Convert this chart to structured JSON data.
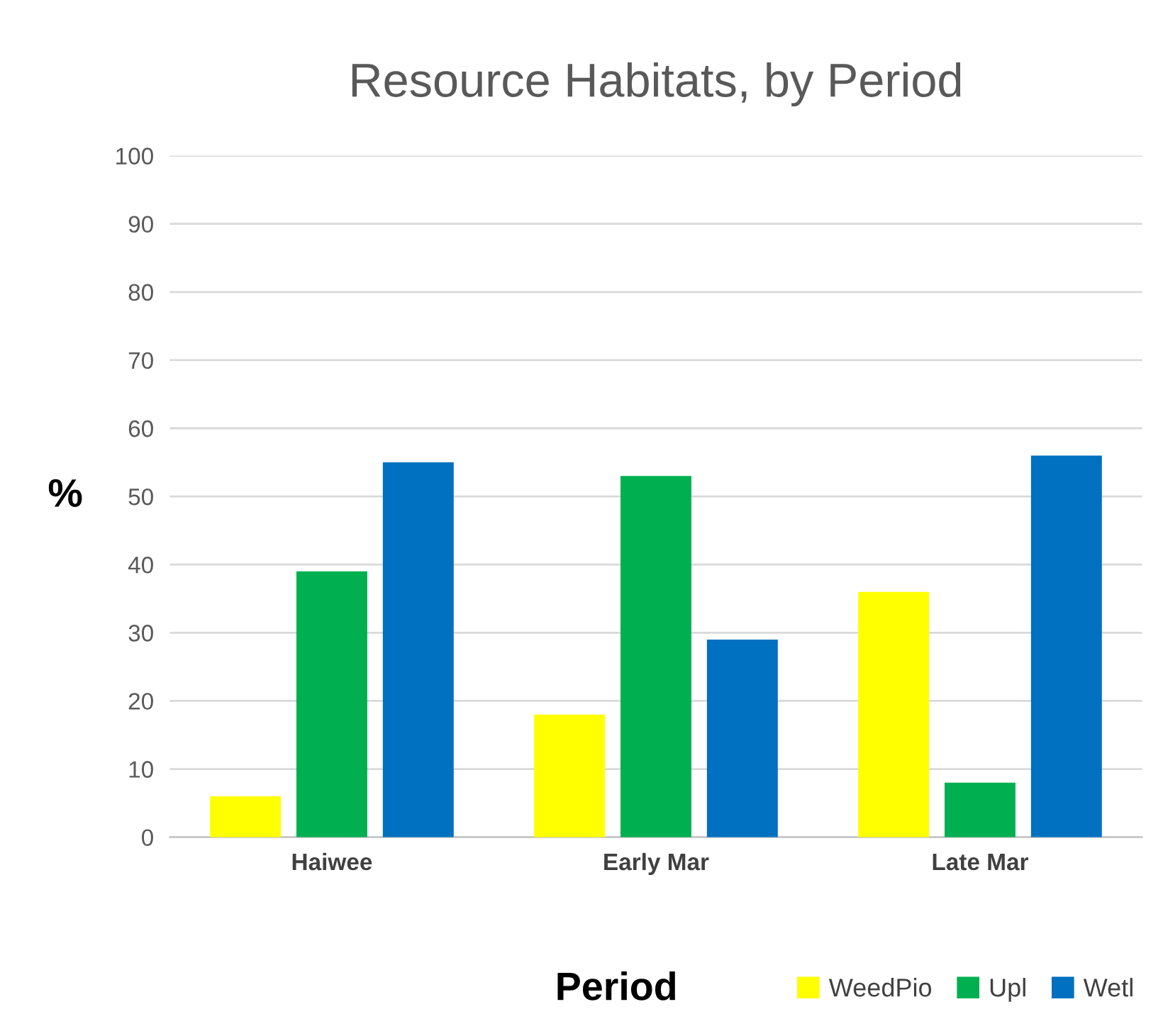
{
  "chart_data": {
    "type": "bar",
    "title": "Resource Habitats, by Period",
    "xlabel": "Period",
    "ylabel": "%",
    "categories": [
      "Haiwee",
      "Early Mar",
      "Late Mar"
    ],
    "series": [
      {
        "name": "WeedPio",
        "color": "#ffff00",
        "values": [
          6,
          18,
          36
        ]
      },
      {
        "name": "Upl",
        "color": "#00b050",
        "values": [
          39,
          53,
          8
        ]
      },
      {
        "name": "Wetl",
        "color": "#0070c0",
        "values": [
          55,
          29,
          56
        ]
      }
    ],
    "ylim": [
      0,
      100
    ],
    "yticks": [
      0,
      10,
      20,
      30,
      40,
      50,
      60,
      70,
      80,
      90,
      100
    ],
    "grid": "y",
    "legend": "bottom"
  }
}
